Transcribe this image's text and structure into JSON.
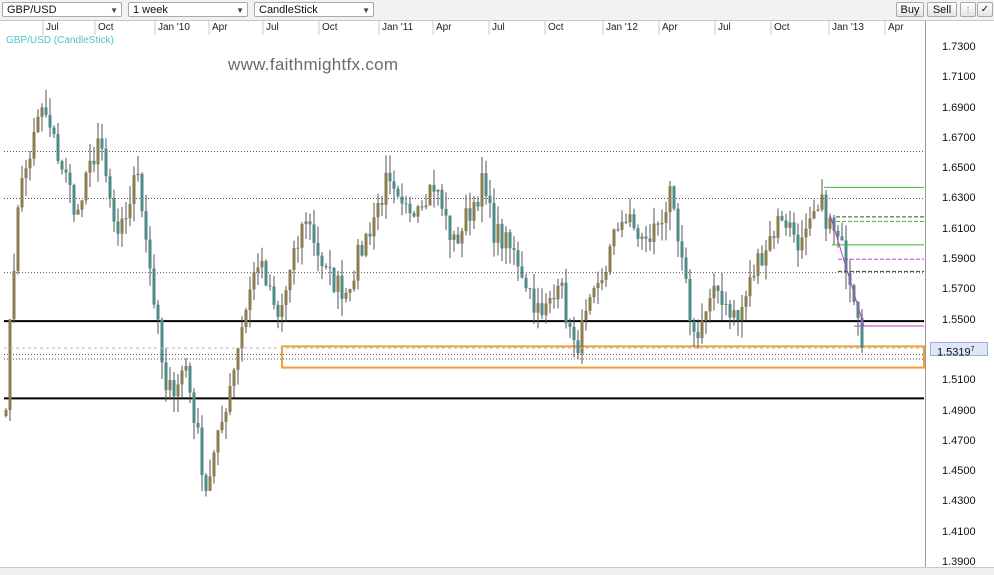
{
  "toolbar": {
    "symbol": "GBP/USD",
    "interval": "1 week",
    "chart_type": "CandleStick",
    "buy_label": "Buy",
    "sell_label": "Sell",
    "tool_icons": [
      "chart-settings-icon",
      "drawing-tool-icon"
    ]
  },
  "chart_subtitle": "GBP/USD (CandleStick)",
  "watermark": "www.faithmightfx.com",
  "current_price_label": "1.5319",
  "colors": {
    "up": "#8b7d4f",
    "down": "#4e8c8a",
    "wick": "#555555",
    "box": "#f0a030",
    "green": "#3bb83b",
    "magenta": "#c040c0"
  },
  "chart_data": {
    "type": "candlestick",
    "symbol": "GBP/USD",
    "interval": "1 week",
    "x_ticks": [
      "Jul",
      "Oct",
      "Jan '10",
      "Apr",
      "Jul",
      "Oct",
      "Jan '11",
      "Apr",
      "Jul",
      "Oct",
      "Jan '12",
      "Apr",
      "Jul",
      "Oct",
      "Jan '13",
      "Apr"
    ],
    "y_ticks": [
      "1.7300",
      "1.7100",
      "1.6900",
      "1.6700",
      "1.6500",
      "1.6300",
      "1.6100",
      "1.5900",
      "1.5700",
      "1.5500",
      "1.5300",
      "1.5100",
      "1.4900",
      "1.4700",
      "1.4500",
      "1.4300",
      "1.4100",
      "1.3900"
    ],
    "ylim": [
      1.385,
      1.738
    ],
    "last_price": 1.5319,
    "grid": false,
    "horizontal_levels": [
      {
        "price": 1.662,
        "style": "dotted"
      },
      {
        "price": 1.631,
        "style": "dotted"
      },
      {
        "price": 1.582,
        "style": "dotted"
      },
      {
        "price": 1.55,
        "style": "solid"
      },
      {
        "price": 1.528,
        "style": "dotted"
      },
      {
        "price": 1.525,
        "style": "dotted"
      },
      {
        "price": 1.499,
        "style": "solid"
      }
    ],
    "support_zone": {
      "low": 1.519,
      "high": 1.533
    },
    "pivots": [
      {
        "i": 0,
        "p": 1.5
      },
      {
        "i": 3,
        "p": 1.63
      },
      {
        "i": 9,
        "p": 1.69
      },
      {
        "i": 13,
        "p": 1.66
      },
      {
        "i": 18,
        "p": 1.62
      },
      {
        "i": 23,
        "p": 1.67
      },
      {
        "i": 28,
        "p": 1.6
      },
      {
        "i": 33,
        "p": 1.65
      },
      {
        "i": 40,
        "p": 1.5
      },
      {
        "i": 45,
        "p": 1.52
      },
      {
        "i": 50,
        "p": 1.44
      },
      {
        "i": 53,
        "p": 1.47
      },
      {
        "i": 60,
        "p": 1.56
      },
      {
        "i": 63,
        "p": 1.59
      },
      {
        "i": 68,
        "p": 1.55
      },
      {
        "i": 75,
        "p": 1.62
      },
      {
        "i": 80,
        "p": 1.58
      },
      {
        "i": 85,
        "p": 1.57
      },
      {
        "i": 95,
        "p": 1.64
      },
      {
        "i": 99,
        "p": 1.62
      },
      {
        "i": 107,
        "p": 1.64
      },
      {
        "i": 112,
        "p": 1.6
      },
      {
        "i": 119,
        "p": 1.64
      },
      {
        "i": 122,
        "p": 1.61
      },
      {
        "i": 128,
        "p": 1.59
      },
      {
        "i": 134,
        "p": 1.55
      },
      {
        "i": 138,
        "p": 1.58
      },
      {
        "i": 142,
        "p": 1.53
      },
      {
        "i": 148,
        "p": 1.57
      },
      {
        "i": 154,
        "p": 1.62
      },
      {
        "i": 160,
        "p": 1.6
      },
      {
        "i": 166,
        "p": 1.63
      },
      {
        "i": 172,
        "p": 1.54
      },
      {
        "i": 178,
        "p": 1.57
      },
      {
        "i": 183,
        "p": 1.55
      },
      {
        "i": 188,
        "p": 1.59
      },
      {
        "i": 194,
        "p": 1.62
      },
      {
        "i": 199,
        "p": 1.6
      },
      {
        "i": 204,
        "p": 1.625
      },
      {
        "i": 210,
        "p": 1.59
      },
      {
        "i": 212,
        "p": 1.57
      },
      {
        "i": 213,
        "p": 1.5519
      },
      {
        "i": 214,
        "p": 1.5319
      }
    ],
    "candle_count": 215
  }
}
